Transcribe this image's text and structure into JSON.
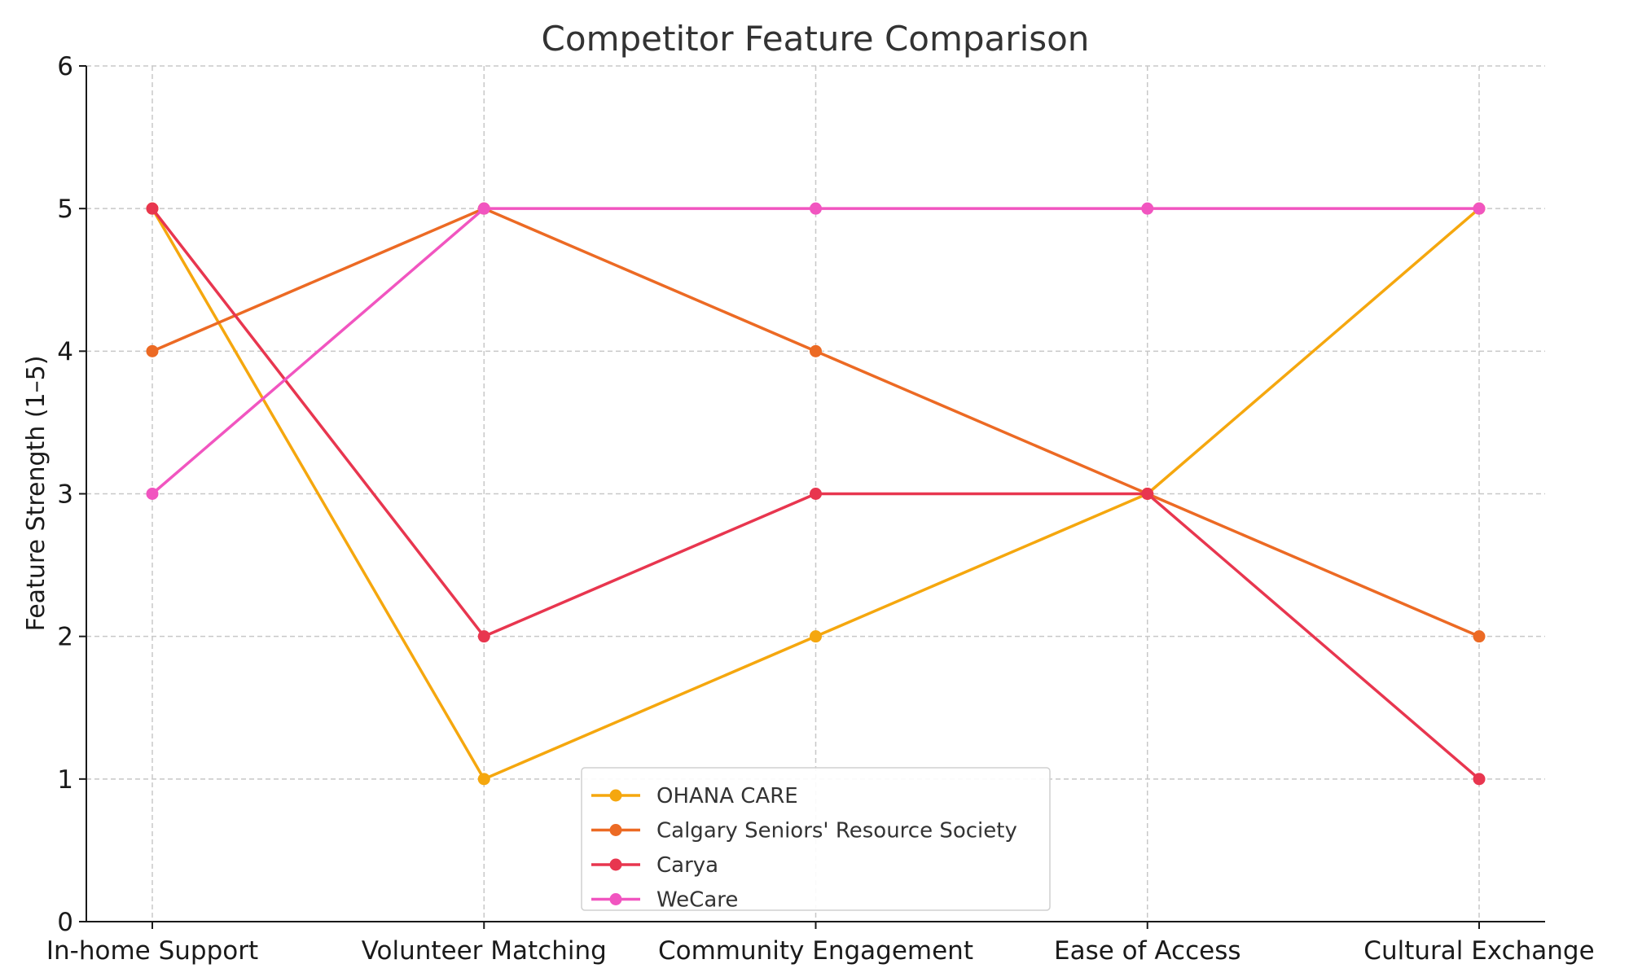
{
  "chart_data": {
    "type": "line",
    "title": "Competitor Feature Comparison",
    "xlabel": "",
    "ylabel": "Feature Strength (1–5)",
    "categories": [
      "In-home Support",
      "Volunteer Matching",
      "Community Engagement",
      "Ease of Access",
      "Cultural Exchange"
    ],
    "ylim": [
      0,
      6
    ],
    "yticks": [
      0,
      1,
      2,
      3,
      4,
      5,
      6
    ],
    "grid": true,
    "legend_position": "bottom-center",
    "series": [
      {
        "name": "OHANA CARE",
        "color": "#f5a70e",
        "values": [
          5,
          1,
          2,
          3,
          5
        ]
      },
      {
        "name": "Calgary Seniors' Resource Society",
        "color": "#ec6a24",
        "values": [
          4,
          5,
          4,
          3,
          2
        ]
      },
      {
        "name": "Carya",
        "color": "#e8364f",
        "values": [
          5,
          2,
          3,
          3,
          1
        ]
      },
      {
        "name": "WeCare",
        "color": "#f155c0",
        "values": [
          3,
          5,
          5,
          5,
          5
        ]
      }
    ]
  }
}
